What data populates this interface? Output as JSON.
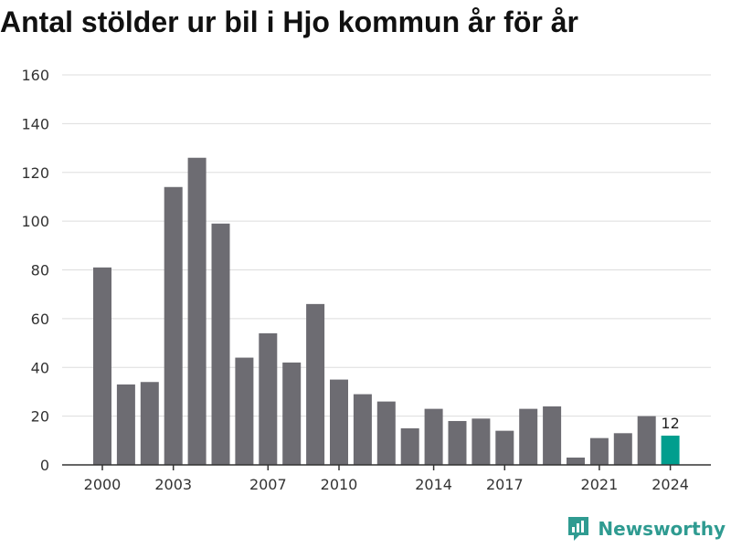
{
  "title": "Antal stölder ur bil i Hjo kommun år för år",
  "brand": {
    "name": "Newsworthy",
    "icon": "newsworthy-logo-icon",
    "color": "#2f9b91"
  },
  "chart_data": {
    "type": "bar",
    "title": "Antal stölder ur bil i Hjo kommun år för år",
    "xlabel": "",
    "ylabel": "",
    "ylim": [
      0,
      160
    ],
    "yticks": [
      0,
      20,
      40,
      60,
      80,
      100,
      120,
      140,
      160
    ],
    "categories": [
      2000,
      2001,
      2002,
      2003,
      2004,
      2005,
      2006,
      2007,
      2008,
      2009,
      2010,
      2011,
      2012,
      2013,
      2014,
      2015,
      2016,
      2017,
      2018,
      2019,
      2020,
      2021,
      2022,
      2023,
      2024
    ],
    "xtick_labels": [
      2000,
      2003,
      2007,
      2010,
      2014,
      2017,
      2021,
      2024
    ],
    "values": [
      81,
      33,
      34,
      114,
      126,
      99,
      44,
      54,
      42,
      66,
      35,
      29,
      26,
      15,
      23,
      18,
      19,
      14,
      23,
      24,
      3,
      11,
      13,
      20,
      12
    ],
    "highlight": {
      "category": 2024,
      "value": 12,
      "label": "12"
    },
    "grid": true,
    "colors": {
      "bar": "#6d6c72",
      "highlight": "#009e8e",
      "grid": "#dddddd",
      "axis": "#333333"
    }
  }
}
